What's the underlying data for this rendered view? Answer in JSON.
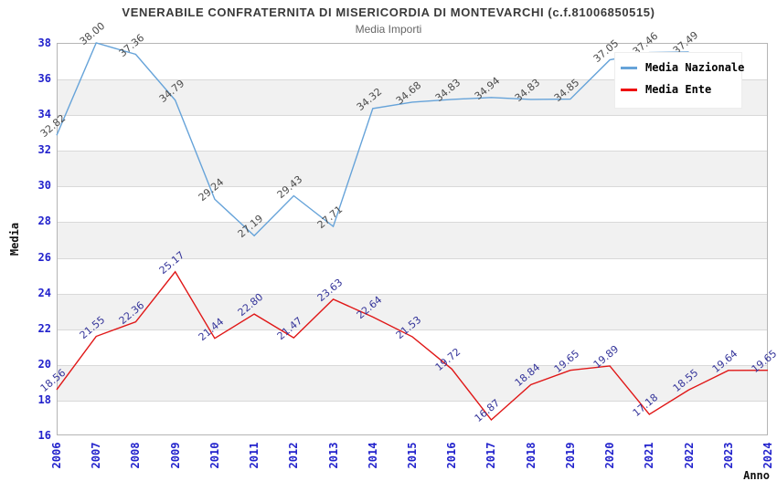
{
  "title": "VENERABILE CONFRATERNITA DI MISERICORDIA DI MONTEVARCHI (c.f.81006850515)",
  "subtitle": "Media Importi",
  "axes": {
    "y_label": "Media",
    "x_label": "Anno",
    "y_ticks": [
      38,
      36,
      34,
      32,
      30,
      28,
      26,
      24,
      22,
      20,
      18,
      16
    ],
    "x_ticks": [
      "2006",
      "2007",
      "2008",
      "2009",
      "2010",
      "2011",
      "2012",
      "2013",
      "2014",
      "2015",
      "2016",
      "2017",
      "2018",
      "2019",
      "2020",
      "2021",
      "2022",
      "2023",
      "2024"
    ]
  },
  "legend": [
    {
      "label": "Media Nazionale",
      "color": "#66a3d9"
    },
    {
      "label": "Media Ente",
      "color": "#ee1111"
    }
  ],
  "colors": {
    "nazionale_line": "#66a3d9",
    "nazionale_label": "#4a4a4a",
    "ente_line": "#e01717",
    "ente_label": "#333399",
    "tick_text": "#2222cc",
    "band_fill": "#f1f1f1"
  },
  "chart_data": {
    "type": "line",
    "title": "VENERABILE CONFRATERNITA DI MISERICORDIA DI MONTEVARCHI (c.f.81006850515)",
    "subtitle": "Media Importi",
    "xlabel": "Anno",
    "ylabel": "Media",
    "ylim": [
      16,
      38
    ],
    "grid": "horizontal, alternating shaded bands every 2 units",
    "legend_position": "top-right inside plot",
    "categories": [
      "2006",
      "2007",
      "2008",
      "2009",
      "2010",
      "2011",
      "2012",
      "2013",
      "2014",
      "2015",
      "2016",
      "2017",
      "2018",
      "2019",
      "2020",
      "2021",
      "2022",
      "2023",
      "2024"
    ],
    "series": [
      {
        "name": "Media Nazionale",
        "color": "#66a3d9",
        "label_color": "#4a4a4a",
        "x": [
          "2006",
          "2007",
          "2008",
          "2009",
          "2010",
          "2011",
          "2012",
          "2013",
          "2014",
          "2015",
          "2016",
          "2017",
          "2018",
          "2019",
          "2020",
          "2021",
          "2022"
        ],
        "values": [
          32.82,
          38.0,
          37.36,
          34.79,
          29.24,
          27.19,
          29.43,
          27.71,
          34.32,
          34.68,
          34.83,
          34.94,
          34.83,
          34.85,
          37.05,
          37.46,
          37.49
        ],
        "labels_partially_hidden_by_legend": [
          "2021"
        ]
      },
      {
        "name": "Media Ente",
        "color": "#e01717",
        "label_color": "#333399",
        "x": [
          "2006",
          "2007",
          "2008",
          "2009",
          "2010",
          "2011",
          "2012",
          "2013",
          "2014",
          "2015",
          "2016",
          "2017",
          "2018",
          "2019",
          "2020",
          "2021",
          "2022",
          "2023",
          "2024"
        ],
        "values": [
          18.56,
          21.55,
          22.36,
          25.17,
          21.44,
          22.8,
          21.47,
          23.63,
          22.64,
          21.53,
          19.72,
          16.87,
          18.84,
          19.65,
          19.89,
          17.18,
          18.55,
          19.64,
          19.65
        ]
      }
    ]
  }
}
